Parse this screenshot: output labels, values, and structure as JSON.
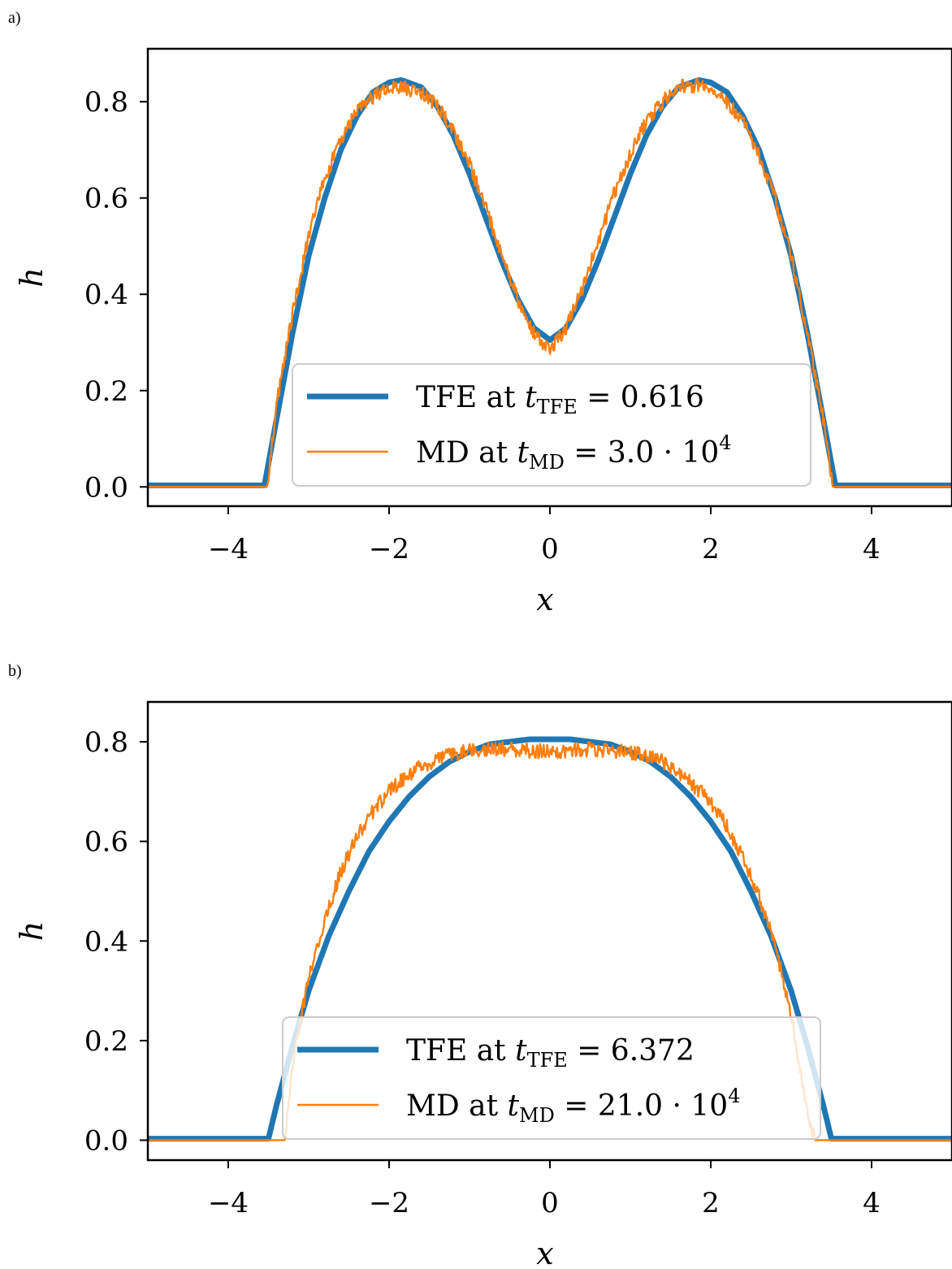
{
  "chart_data": [
    {
      "panel_label": "a)",
      "type": "line",
      "xlabel": "x",
      "ylabel": "h",
      "xlim": [
        -5,
        5
      ],
      "ylim": [
        -0.04,
        0.91
      ],
      "xticks": [
        -4,
        -2,
        0,
        2,
        4
      ],
      "xtick_labels": [
        "−4",
        "−2",
        "0",
        "2",
        "4"
      ],
      "yticks": [
        0.0,
        0.2,
        0.4,
        0.6,
        0.8
      ],
      "ytick_labels": [
        "0.0",
        "0.2",
        "0.4",
        "0.6",
        "0.8"
      ],
      "grid": false,
      "legend_position": "lower-center",
      "series": [
        {
          "name": "TFE at t_TFE = 0.616",
          "legend_main": "TFE at ",
          "legend_var": "t",
          "legend_sub": "TFE",
          "legend_tail": " = 0.616",
          "color": "#1f77b4",
          "style": "thick",
          "x": [
            -5.0,
            -3.55,
            -3.4,
            -3.2,
            -3.0,
            -2.8,
            -2.6,
            -2.4,
            -2.2,
            -2.0,
            -1.85,
            -1.6,
            -1.4,
            -1.2,
            -1.0,
            -0.8,
            -0.6,
            -0.4,
            -0.2,
            0.0,
            0.2,
            0.4,
            0.6,
            0.8,
            1.0,
            1.2,
            1.4,
            1.6,
            1.85,
            2.0,
            2.2,
            2.4,
            2.6,
            2.8,
            3.0,
            3.2,
            3.4,
            3.55,
            5.0
          ],
          "y": [
            0.003,
            0.003,
            0.14,
            0.32,
            0.48,
            0.6,
            0.7,
            0.77,
            0.82,
            0.84,
            0.845,
            0.83,
            0.79,
            0.73,
            0.65,
            0.56,
            0.47,
            0.39,
            0.33,
            0.305,
            0.33,
            0.39,
            0.47,
            0.56,
            0.65,
            0.73,
            0.79,
            0.83,
            0.845,
            0.84,
            0.82,
            0.77,
            0.7,
            0.6,
            0.48,
            0.32,
            0.14,
            0.003,
            0.003
          ]
        },
        {
          "name": "MD at t_MD = 3.0·10^4",
          "legend_main": "MD at ",
          "legend_var": "t",
          "legend_sub": "MD",
          "legend_tail": " = 3.0 · 10",
          "legend_sup": "4",
          "color": "#ff7f0e",
          "style": "thin",
          "x": [
            -5.0,
            -3.52,
            -3.4,
            -3.2,
            -3.0,
            -2.8,
            -2.6,
            -2.4,
            -2.2,
            -2.0,
            -1.85,
            -1.6,
            -1.4,
            -1.2,
            -1.0,
            -0.8,
            -0.6,
            -0.4,
            -0.2,
            0.0,
            0.2,
            0.4,
            0.6,
            0.8,
            1.0,
            1.2,
            1.4,
            1.6,
            1.85,
            2.0,
            2.2,
            2.4,
            2.6,
            2.8,
            3.0,
            3.2,
            3.4,
            3.52,
            5.0
          ],
          "y": [
            0.0,
            0.0,
            0.17,
            0.36,
            0.52,
            0.64,
            0.72,
            0.78,
            0.81,
            0.83,
            0.83,
            0.82,
            0.79,
            0.74,
            0.67,
            0.58,
            0.48,
            0.39,
            0.32,
            0.28,
            0.33,
            0.41,
            0.51,
            0.61,
            0.69,
            0.76,
            0.8,
            0.83,
            0.835,
            0.83,
            0.8,
            0.76,
            0.69,
            0.6,
            0.48,
            0.32,
            0.14,
            0.0,
            0.0
          ]
        }
      ]
    },
    {
      "panel_label": "b)",
      "type": "line",
      "xlabel": "x",
      "ylabel": "h",
      "xlim": [
        -5,
        5
      ],
      "ylim": [
        -0.04,
        0.88
      ],
      "xticks": [
        -4,
        -2,
        0,
        2,
        4
      ],
      "xtick_labels": [
        "−4",
        "−2",
        "0",
        "2",
        "4"
      ],
      "yticks": [
        0.0,
        0.2,
        0.4,
        0.6,
        0.8
      ],
      "ytick_labels": [
        "0.0",
        "0.2",
        "0.4",
        "0.6",
        "0.8"
      ],
      "grid": false,
      "legend_position": "lower-center",
      "series": [
        {
          "name": "TFE at t_TFE = 6.372",
          "legend_main": "TFE at ",
          "legend_var": "t",
          "legend_sub": "TFE",
          "legend_tail": " = 6.372",
          "color": "#1f77b4",
          "style": "thick",
          "x": [
            -5.0,
            -3.5,
            -3.4,
            -3.2,
            -3.0,
            -2.75,
            -2.5,
            -2.25,
            -2.0,
            -1.75,
            -1.5,
            -1.25,
            -1.0,
            -0.75,
            -0.5,
            -0.25,
            0.0,
            0.25,
            0.5,
            0.75,
            1.0,
            1.25,
            1.5,
            1.75,
            2.0,
            2.25,
            2.5,
            2.75,
            3.0,
            3.2,
            3.4,
            3.5,
            5.0
          ],
          "y": [
            0.003,
            0.003,
            0.07,
            0.19,
            0.3,
            0.41,
            0.5,
            0.58,
            0.64,
            0.69,
            0.73,
            0.76,
            0.78,
            0.795,
            0.8,
            0.805,
            0.805,
            0.805,
            0.8,
            0.795,
            0.78,
            0.76,
            0.73,
            0.69,
            0.64,
            0.58,
            0.5,
            0.41,
            0.3,
            0.19,
            0.07,
            0.003,
            0.003
          ]
        },
        {
          "name": "MD at t_MD = 21.0·10^4",
          "legend_main": "MD at ",
          "legend_var": "t",
          "legend_sub": "MD",
          "legend_tail": " = 21.0 · 10",
          "legend_sup": "4",
          "color": "#ff7f0e",
          "style": "thin",
          "x": [
            -5.0,
            -3.3,
            -3.2,
            -3.0,
            -2.8,
            -2.6,
            -2.4,
            -2.2,
            -2.0,
            -1.8,
            -1.6,
            -1.4,
            -1.2,
            -1.0,
            -0.5,
            0.0,
            0.5,
            1.0,
            1.2,
            1.4,
            1.6,
            1.8,
            2.0,
            2.2,
            2.4,
            2.6,
            2.8,
            3.0,
            3.1,
            3.2,
            3.3,
            5.0
          ],
          "y": [
            0.0,
            0.0,
            0.15,
            0.33,
            0.44,
            0.54,
            0.61,
            0.66,
            0.7,
            0.73,
            0.75,
            0.765,
            0.775,
            0.785,
            0.785,
            0.78,
            0.785,
            0.78,
            0.77,
            0.76,
            0.74,
            0.71,
            0.68,
            0.63,
            0.57,
            0.49,
            0.39,
            0.25,
            0.15,
            0.06,
            0.0,
            0.0
          ]
        }
      ]
    }
  ]
}
